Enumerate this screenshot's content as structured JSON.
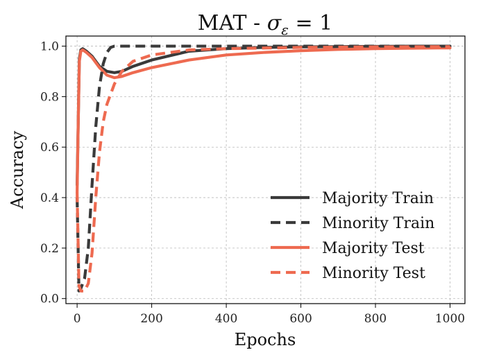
{
  "chart_data": {
    "type": "line",
    "title": "MAT - σε = 1",
    "title_parts": {
      "prefix": "MAT - ",
      "symbol": "σ",
      "subscript": "ε",
      "suffix": " = 1"
    },
    "xlabel": "Epochs",
    "ylabel": "Accuracy",
    "xlim": [
      -30,
      1040
    ],
    "ylim": [
      -0.02,
      1.04
    ],
    "xticks": [
      0,
      200,
      400,
      600,
      800,
      1000
    ],
    "yticks": [
      0.0,
      0.2,
      0.4,
      0.6,
      0.8,
      1.0
    ],
    "xtick_labels": [
      "0",
      "200",
      "400",
      "600",
      "800",
      "1000"
    ],
    "ytick_labels": [
      "0.0",
      "0.2",
      "0.4",
      "0.6",
      "0.8",
      "1.0"
    ],
    "grid": true,
    "legend_position": "lower-right",
    "series": [
      {
        "name": "Majority Train",
        "color": "#3a3a3a",
        "dash": "solid",
        "x": [
          0,
          3,
          6,
          10,
          15,
          25,
          40,
          60,
          80,
          100,
          120,
          150,
          200,
          300,
          400,
          500,
          600,
          700,
          800,
          900,
          1000
        ],
        "y": [
          0.45,
          0.7,
          0.95,
          0.985,
          0.99,
          0.98,
          0.96,
          0.92,
          0.9,
          0.895,
          0.9,
          0.92,
          0.945,
          0.98,
          0.99,
          0.995,
          0.997,
          0.998,
          0.999,
          1.0,
          1.0
        ]
      },
      {
        "name": "Minority Train",
        "color": "#3a3a3a",
        "dash": "dashed",
        "x": [
          0,
          5,
          10,
          20,
          30,
          40,
          50,
          60,
          70,
          80,
          90,
          100,
          150,
          200,
          400,
          600,
          800,
          1000
        ],
        "y": [
          0.4,
          0.03,
          0.04,
          0.08,
          0.2,
          0.45,
          0.68,
          0.84,
          0.93,
          0.975,
          0.995,
          1.0,
          1.0,
          1.0,
          1.0,
          1.0,
          1.0,
          1.0
        ]
      },
      {
        "name": "Majority Test",
        "color": "#ee6a50",
        "dash": "solid",
        "x": [
          0,
          3,
          6,
          10,
          15,
          25,
          40,
          60,
          80,
          100,
          120,
          150,
          200,
          300,
          400,
          500,
          600,
          700,
          800,
          900,
          1000
        ],
        "y": [
          0.42,
          0.7,
          0.94,
          0.98,
          0.985,
          0.975,
          0.955,
          0.915,
          0.885,
          0.875,
          0.88,
          0.895,
          0.915,
          0.945,
          0.965,
          0.975,
          0.982,
          0.987,
          0.99,
          0.992,
          0.993
        ]
      },
      {
        "name": "Minority Test",
        "color": "#ee6a50",
        "dash": "dashed",
        "x": [
          0,
          5,
          10,
          20,
          30,
          40,
          50,
          60,
          70,
          80,
          100,
          120,
          150,
          200,
          300,
          400,
          600,
          800,
          1000
        ],
        "y": [
          0.42,
          0.05,
          0.03,
          0.03,
          0.06,
          0.18,
          0.4,
          0.58,
          0.7,
          0.77,
          0.85,
          0.9,
          0.94,
          0.965,
          0.985,
          0.99,
          0.995,
          0.997,
          0.998
        ]
      }
    ]
  }
}
